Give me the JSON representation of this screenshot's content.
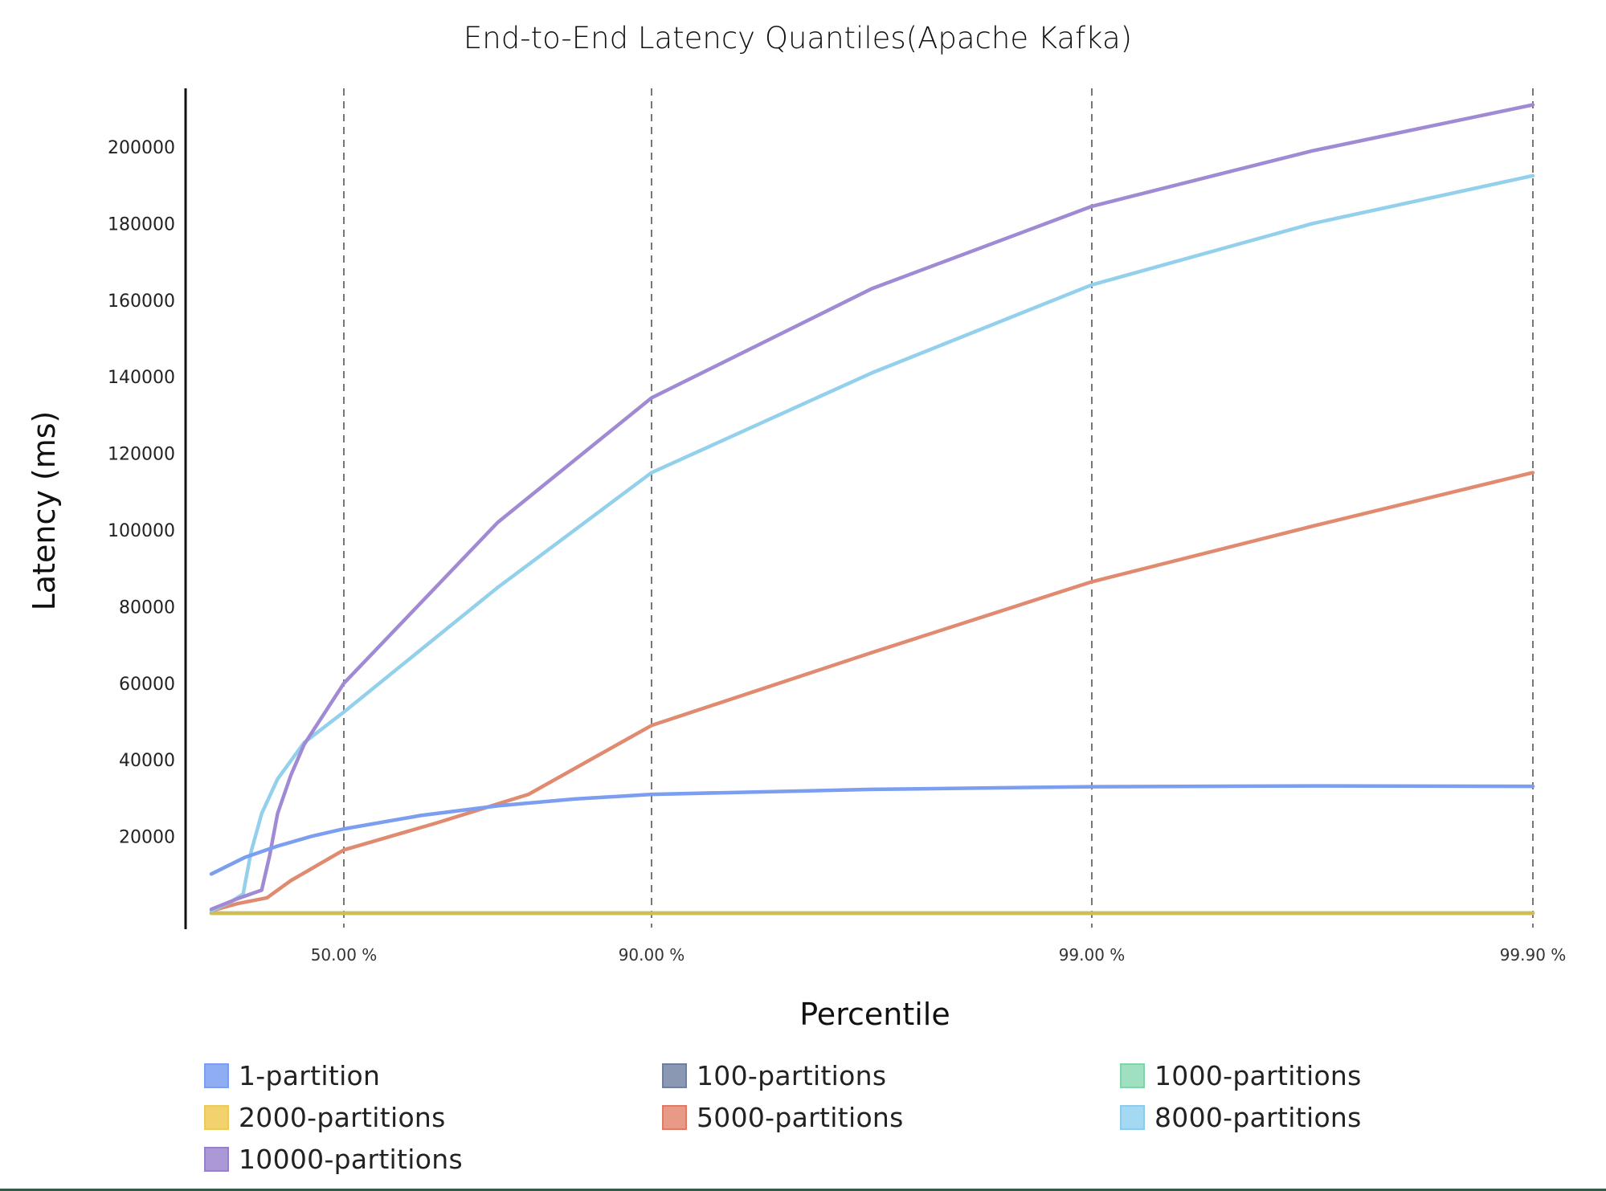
{
  "chart_data": {
    "type": "line",
    "title": "End-to-End Latency Quantiles(Apache Kafka)",
    "xlabel": "Percentile",
    "ylabel": "Latency (ms)",
    "x_ticks": [
      "50.00 %",
      "90.00 %",
      "99.00 %",
      "99.90 %"
    ],
    "x_scale": "quantile (log-like spacing); positions 0=min, 1=50%, 2=90%, 3=99%, 4=99.9%",
    "y_ticks": [
      20000,
      40000,
      60000,
      80000,
      100000,
      120000,
      140000,
      160000,
      180000,
      200000
    ],
    "ylim": [
      0,
      215000
    ],
    "grid": "vertical dashed lines at each x tick",
    "legend_position": "bottom",
    "series": [
      {
        "name": "1-partition",
        "color": "#7c9ef0",
        "points": [
          [
            0,
            10200
          ],
          [
            0.25,
            14500
          ],
          [
            0.5,
            17500
          ],
          [
            0.75,
            20000
          ],
          [
            1,
            22000
          ],
          [
            1.25,
            25500
          ],
          [
            1.5,
            28000
          ],
          [
            1.75,
            29800
          ],
          [
            2,
            31000
          ],
          [
            2.5,
            32300
          ],
          [
            3,
            33000
          ],
          [
            3.5,
            33200
          ],
          [
            4,
            33100
          ]
        ]
      },
      {
        "name": "100-partitions",
        "color": "#8a98b3",
        "points": [
          [
            0,
            0
          ],
          [
            4,
            0
          ]
        ]
      },
      {
        "name": "1000-partitions",
        "color": "#94dcb8",
        "points": [
          [
            0,
            0
          ],
          [
            4,
            0
          ]
        ]
      },
      {
        "name": "2000-partitions",
        "color": "#d2bd52",
        "points": [
          [
            0,
            0
          ],
          [
            1,
            0
          ],
          [
            2,
            0
          ],
          [
            3,
            0
          ],
          [
            4,
            0
          ]
        ]
      },
      {
        "name": "5000-partitions",
        "color": "#e08a70",
        "points": [
          [
            0,
            600
          ],
          [
            0.2,
            2500
          ],
          [
            0.42,
            4000
          ],
          [
            0.6,
            8500
          ],
          [
            1,
            16500
          ],
          [
            1.3,
            23500
          ],
          [
            1.6,
            31000
          ],
          [
            2,
            49000
          ],
          [
            2.5,
            68000
          ],
          [
            3,
            86500
          ],
          [
            3.5,
            101000
          ],
          [
            4,
            115000
          ]
        ]
      },
      {
        "name": "8000-partitions",
        "color": "#93d0ec",
        "points": [
          [
            0,
            600
          ],
          [
            0.15,
            3000
          ],
          [
            0.24,
            5000
          ],
          [
            0.3,
            16000
          ],
          [
            0.38,
            26000
          ],
          [
            0.5,
            35000
          ],
          [
            0.7,
            44500
          ],
          [
            1,
            52500
          ],
          [
            1.5,
            85000
          ],
          [
            2,
            115000
          ],
          [
            2.5,
            141000
          ],
          [
            3,
            164000
          ],
          [
            3.5,
            180000
          ],
          [
            4,
            192500
          ]
        ]
      },
      {
        "name": "10000-partitions",
        "color": "#a08ad4",
        "points": [
          [
            0,
            1000
          ],
          [
            0.2,
            3800
          ],
          [
            0.38,
            6000
          ],
          [
            0.44,
            15000
          ],
          [
            0.5,
            26000
          ],
          [
            0.6,
            36000
          ],
          [
            0.7,
            44000
          ],
          [
            1,
            60000
          ],
          [
            1.5,
            102000
          ],
          [
            2,
            134500
          ],
          [
            2.5,
            163000
          ],
          [
            3,
            184500
          ],
          [
            3.5,
            199000
          ],
          [
            4,
            211000
          ]
        ]
      }
    ]
  },
  "legend": {
    "items": [
      {
        "label": "1-partition",
        "fill": "#8fadf3",
        "border": "#7c9ef0"
      },
      {
        "label": "100-partitions",
        "fill": "#8a98b3",
        "border": "#6f7f9e"
      },
      {
        "label": "1000-partitions",
        "fill": "#9ee0bf",
        "border": "#80d4aa"
      },
      {
        "label": "2000-partitions",
        "fill": "#f2d26d",
        "border": "#ecc95a"
      },
      {
        "label": "5000-partitions",
        "fill": "#e99a87",
        "border": "#e07a62"
      },
      {
        "label": "8000-partitions",
        "fill": "#a5d8f2",
        "border": "#8ccbec"
      },
      {
        "label": "10000-partitions",
        "fill": "#ab98d6",
        "border": "#9580cc"
      }
    ]
  }
}
